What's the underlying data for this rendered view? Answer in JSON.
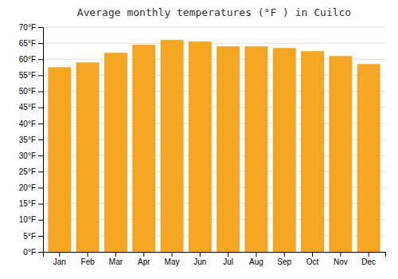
{
  "chart_data": {
    "type": "bar",
    "title": "Average monthly temperatures (°F ) in Cuilco",
    "categories": [
      "Jan",
      "Feb",
      "Mar",
      "Apr",
      "May",
      "Jun",
      "Jul",
      "Aug",
      "Sep",
      "Oct",
      "Nov",
      "Dec"
    ],
    "values": [
      57.5,
      59.0,
      62.0,
      64.5,
      66.0,
      65.5,
      64.0,
      64.0,
      63.5,
      62.5,
      61.0,
      58.5
    ],
    "color": "#F5A623",
    "ylim": [
      0,
      70
    ],
    "yticks": [
      {
        "value": 0,
        "label": "0°F"
      },
      {
        "value": 5,
        "label": "5°F"
      },
      {
        "value": 10,
        "label": "10°F"
      },
      {
        "value": 15,
        "label": "15°F"
      },
      {
        "value": 20,
        "label": "20°F"
      },
      {
        "value": 25,
        "label": "25°F"
      },
      {
        "value": 30,
        "label": "30°F"
      },
      {
        "value": 35,
        "label": "35°F"
      },
      {
        "value": 40,
        "label": "40°F"
      },
      {
        "value": 45,
        "label": "45°F"
      },
      {
        "value": 50,
        "label": "50°F"
      },
      {
        "value": 55,
        "label": "55°F"
      },
      {
        "value": 60,
        "label": "60°F"
      },
      {
        "value": 65,
        "label": "65°F"
      },
      {
        "value": 70,
        "label": "70°F"
      }
    ],
    "grid": true
  }
}
